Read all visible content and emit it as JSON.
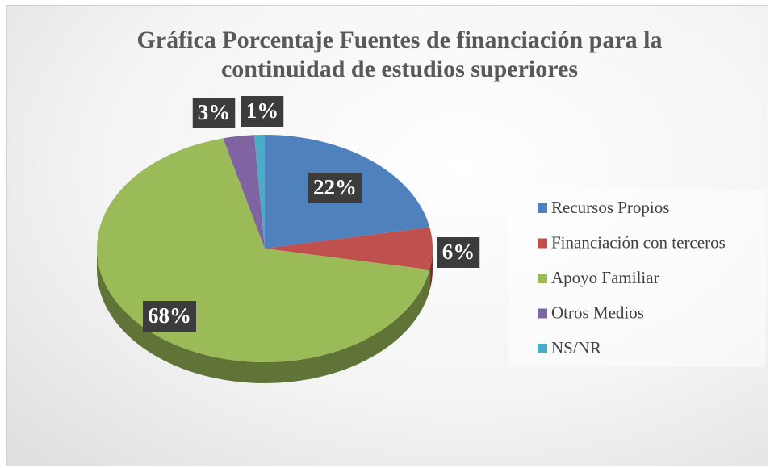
{
  "chart_data": {
    "type": "pie",
    "title": "Gráfica Porcentaje Fuentes de financiación para la continuidad de estudios superiores",
    "categories": [
      "Recursos Propios",
      "Financiación con terceros",
      "Apoyo Familiar",
      "Otros Medios",
      "NS/NR"
    ],
    "values": [
      22,
      6,
      68,
      3,
      1
    ],
    "value_labels": [
      "22%",
      "6%",
      "68%",
      "3%",
      "1%"
    ],
    "colors": [
      "#4f81bd",
      "#c0504d",
      "#9bbb59",
      "#8064a2",
      "#4bacc6"
    ],
    "legend": "right"
  }
}
